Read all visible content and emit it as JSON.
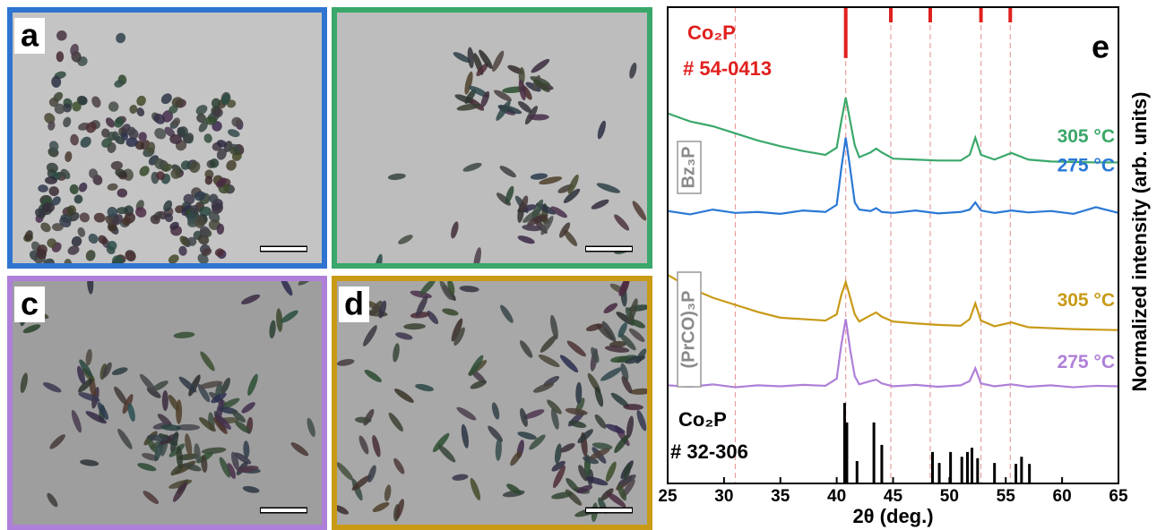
{
  "panels": [
    {
      "label": "a",
      "border": "#2f74d0"
    },
    {
      "border": "#3aa86a"
    },
    {
      "label": "c",
      "border": "#ae7fd8"
    },
    {
      "label": "d",
      "border": "#c89a16"
    }
  ],
  "chart_data": {
    "type": "line",
    "panel_label": "e",
    "xlabel": "2θ (deg.)",
    "ylabel": "Normalized intensity (arb. units)",
    "xlim": [
      25,
      65
    ],
    "xticks": [
      25,
      30,
      35,
      40,
      45,
      50,
      55,
      60,
      65
    ],
    "ylim": [
      0,
      100
    ],
    "x": [
      25,
      27,
      29,
      31,
      33,
      35,
      37,
      39,
      40,
      40.4,
      40.8,
      41.2,
      41.6,
      42,
      43,
      43.5,
      44,
      45,
      47,
      49,
      51,
      51.8,
      52.3,
      52.8,
      54,
      55.5,
      57,
      59,
      61,
      63,
      65
    ],
    "groups": [
      {
        "name": "Bz₃P"
      },
      {
        "name": "(PrCO)₃P"
      }
    ],
    "series": [
      {
        "name": "305 °C",
        "color": "#3aa86a",
        "values": [
          77.7,
          76,
          75,
          73.5,
          72,
          70.8,
          69.8,
          69,
          70.5,
          76,
          81,
          76,
          71,
          68.5,
          69.5,
          70.3,
          69.5,
          68.2,
          68,
          67.8,
          67.8,
          69,
          72.6,
          69,
          68,
          69.4,
          68,
          67.6,
          67.5,
          67.4,
          67.4
        ]
      },
      {
        "name": "275 °C",
        "color": "#2a78d6",
        "values": [
          57.2,
          56.5,
          57.5,
          56.8,
          57,
          56.6,
          57.3,
          57,
          58.5,
          66,
          72.6,
          66,
          59,
          57.5,
          57.2,
          57.8,
          57,
          56.8,
          57.3,
          56.7,
          57,
          57.5,
          59,
          57.3,
          56.8,
          57.3,
          56.9,
          57.2,
          56.6,
          58,
          56.8
        ]
      },
      {
        "name": "305 °C",
        "color": "#c89a16",
        "values": [
          43.8,
          41,
          39,
          37.5,
          36,
          34.8,
          34.5,
          34.2,
          35.5,
          39.5,
          42.3,
          39,
          35.5,
          34,
          35.3,
          35.9,
          35,
          34,
          33.6,
          33.3,
          33.1,
          34.5,
          37.8,
          34.2,
          33,
          33.8,
          32.8,
          32.6,
          32.4,
          32.3,
          32.2
        ]
      },
      {
        "name": "275 °C",
        "color": "#ae7fd8",
        "values": [
          20.6,
          20.3,
          20.8,
          20.2,
          20.6,
          20.4,
          20.7,
          20.5,
          22,
          29,
          34.5,
          28,
          22.5,
          20.8,
          21.5,
          21.8,
          21,
          20.4,
          20.7,
          20.3,
          20.6,
          21.5,
          24.2,
          21,
          20.4,
          20.8,
          20.3,
          20.6,
          20.2,
          20.5,
          20.4
        ]
      }
    ],
    "reference_top": {
      "name": "Co₂P",
      "card": "# 54-0413",
      "color": "#e0201e",
      "x": [
        40.8,
        44.8,
        48.3,
        52.8,
        55.4
      ],
      "values": [
        10.7,
        3.2,
        3.2,
        3.2,
        3.2
      ]
    },
    "reference_bottom": {
      "name": "Co₂P",
      "card": "# 32-306",
      "color": "#000000",
      "x": [
        40.7,
        40.9,
        41.8,
        43.3,
        44.0,
        48.5,
        49.1,
        50.1,
        51.1,
        51.6,
        52.0,
        52.5,
        54.0,
        55.9,
        56.4,
        57.1
      ],
      "values": [
        16.9,
        12.8,
        4.7,
        12.8,
        8.1,
        6.6,
        4.3,
        6.6,
        5.6,
        6.6,
        7.5,
        5.3,
        4.3,
        4.1,
        5.6,
        4.1
      ]
    },
    "guide_x": [
      31,
      40.8,
      44.8,
      48.3,
      52.8,
      55.4
    ]
  }
}
